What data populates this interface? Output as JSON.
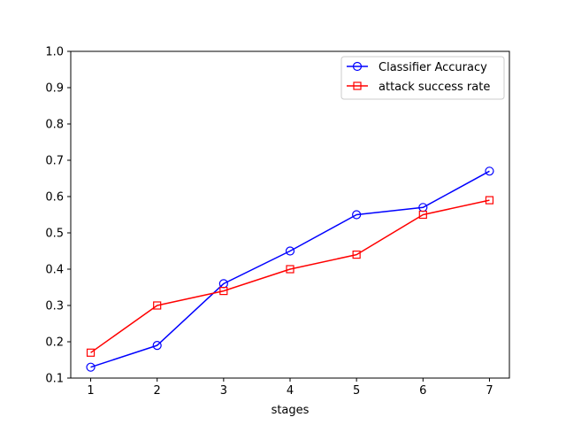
{
  "chart_data": {
    "type": "line",
    "title": "",
    "xlabel": "stages",
    "ylabel": "",
    "x": [
      1,
      2,
      3,
      4,
      5,
      6,
      7
    ],
    "xlim": [
      0.7,
      7.3
    ],
    "ylim": [
      0.1,
      1.0
    ],
    "xticks": [
      "1",
      "2",
      "3",
      "4",
      "5",
      "6",
      "7"
    ],
    "yticks": [
      "0.1",
      "0.2",
      "0.3",
      "0.4",
      "0.5",
      "0.6",
      "0.7",
      "0.8",
      "0.9",
      "1.0"
    ],
    "grid": false,
    "legend_position": "top-right",
    "series": [
      {
        "name": "Classifier Accuracy",
        "color": "#0000ff",
        "marker": "circle",
        "values": [
          0.13,
          0.19,
          0.36,
          0.45,
          0.55,
          0.57,
          0.67
        ]
      },
      {
        "name": "attack success rate",
        "color": "#ff0000",
        "marker": "square",
        "values": [
          0.17,
          0.3,
          0.34,
          0.4,
          0.44,
          0.55,
          0.59
        ]
      }
    ]
  }
}
